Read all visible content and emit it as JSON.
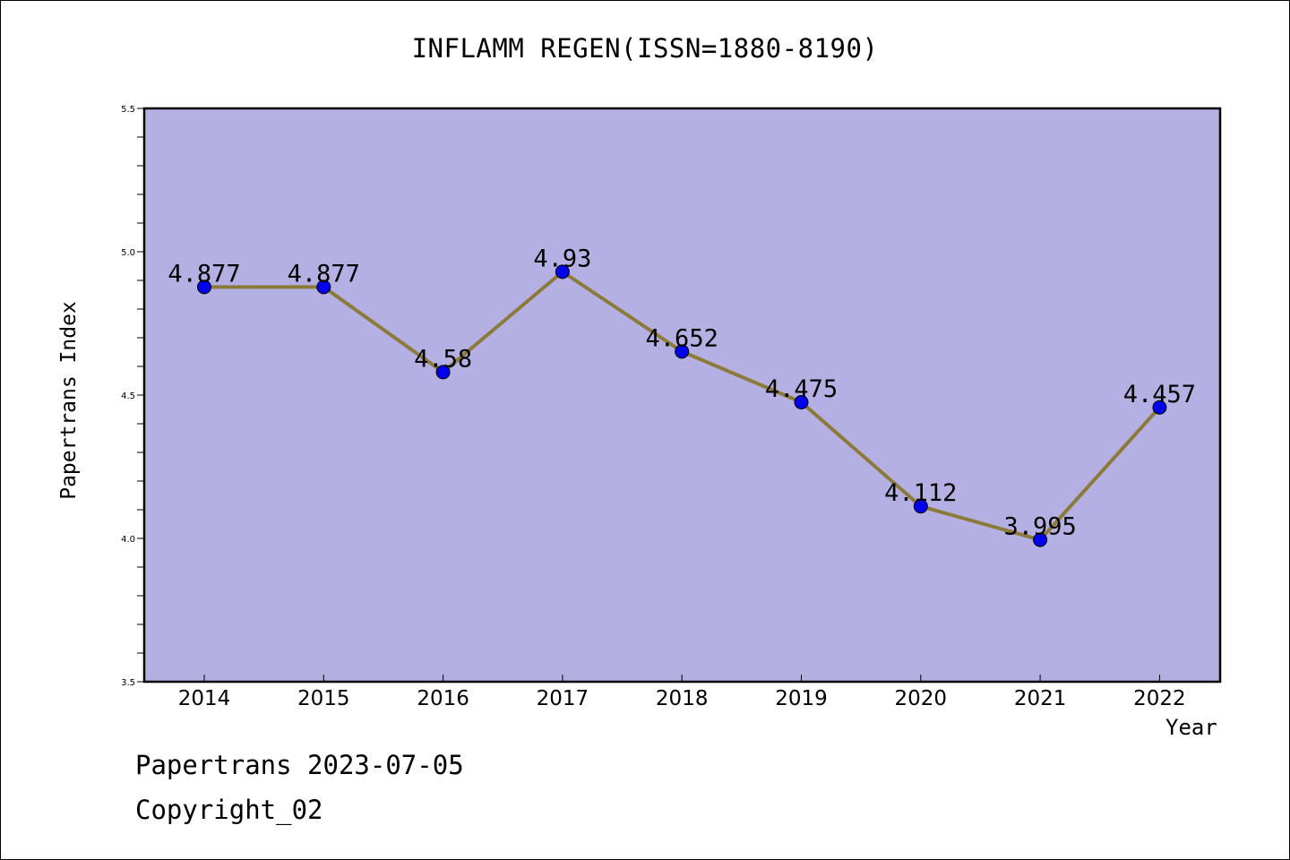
{
  "chart_data": {
    "type": "line",
    "title": "INFLAMM REGEN(ISSN=1880-8190)",
    "xlabel": "Year",
    "ylabel": "Papertrans Index",
    "x": [
      "2014",
      "2015",
      "2016",
      "2017",
      "2018",
      "2019",
      "2020",
      "2021",
      "2022"
    ],
    "series": [
      {
        "values": [
          4.877,
          4.877,
          4.58,
          4.93,
          4.652,
          4.475,
          4.112,
          3.995,
          4.457
        ]
      }
    ],
    "data_labels": [
      "4.877",
      "4.877",
      "4.58",
      "4.93",
      "4.652",
      "4.475",
      "4.112",
      "3.995",
      "4.457"
    ],
    "ylim": [
      3.5,
      5.5
    ],
    "yticks": [
      "3.5",
      "4.0",
      "4.5",
      "5.0",
      "5.5"
    ],
    "grid": false,
    "colors": {
      "plot_background": "#b5b0e3",
      "line": "#8c7a3a",
      "marker": "#0000ee"
    }
  },
  "footer": {
    "date_text": "Papertrans 2023-07-05",
    "copyright_text": "Copyright_02"
  }
}
